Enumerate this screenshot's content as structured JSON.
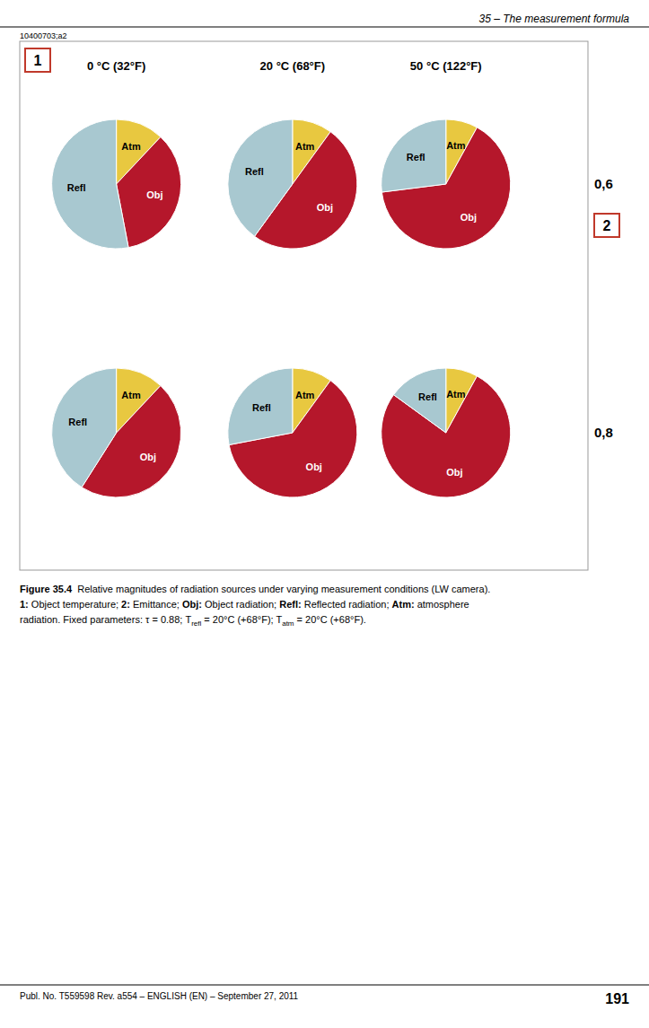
{
  "chart_data": [
    {
      "type": "pie",
      "categories": [
        "Atm",
        "Obj",
        "Refl"
      ],
      "values": [
        12,
        35,
        53
      ],
      "colors": [
        "#E8C840",
        "#B5172B",
        "#A8C8D0"
      ],
      "annotations": [
        "35 – The measurement formula",
        "10400703;a2",
        "0 °C (32°F)",
        "20 °C (68°F)",
        "50 °C (122°F)",
        "0,6",
        "0,8",
        "1",
        "2",
        "Publ. No. T559598 Rev. a554 – ENGLISH (EN) – September 27, 2011",
        "191",
        [
          "Figure 35.4",
          "  Relative magnitudes of radiation sources under varying measurement conditions (LW camera)."
        ],
        [
          "1:",
          " Object temperature; ",
          "2:",
          " Emittance; ",
          "Obj:",
          " Object radiation; ",
          "Refl:",
          " Reflected radiation; ",
          "Atm:",
          " atmosphere"
        ],
        [
          "radiation. Fixed parameters: τ = 0.88; T",
          "refl",
          " = 20°C (+68°F); T",
          "atm",
          " = 20°C (+68°F)."
        ]
      ]
    },
    {
      "type": "pie",
      "categories": [
        "Atm",
        "Obj",
        "Refl"
      ],
      "values": [
        10,
        50,
        40
      ],
      "colors": [
        "#E8C840",
        "#B5172B",
        "#A8C8D0"
      ]
    },
    {
      "type": "pie",
      "categories": [
        "Atm",
        "Obj",
        "Refl"
      ],
      "values": [
        8,
        65,
        27
      ],
      "colors": [
        "#E8C840",
        "#B5172B",
        "#A8C8D0"
      ]
    },
    {
      "type": "pie",
      "categories": [
        "Atm",
        "Obj",
        "Refl"
      ],
      "values": [
        12,
        47,
        41
      ],
      "colors": [
        "#E8C840",
        "#B5172B",
        "#A8C8D0"
      ]
    },
    {
      "type": "pie",
      "categories": [
        "Atm",
        "Obj",
        "Refl"
      ],
      "values": [
        10,
        62,
        28
      ],
      "colors": [
        "#E8C840",
        "#B5172B",
        "#A8C8D0"
      ]
    },
    {
      "type": "pie",
      "categories": [
        "Atm",
        "Obj",
        "Refl"
      ],
      "values": [
        8,
        77,
        15
      ],
      "colors": [
        "#E8C840",
        "#B5172B",
        "#A8C8D0"
      ]
    }
  ]
}
